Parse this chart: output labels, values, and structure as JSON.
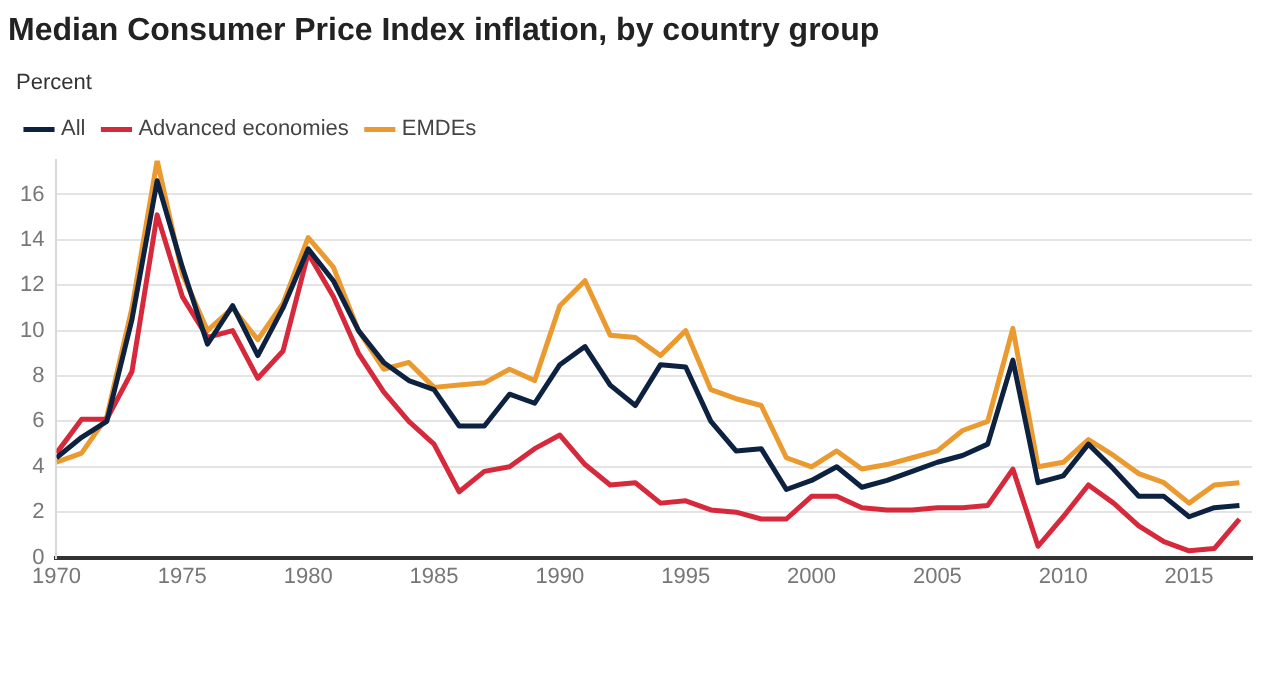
{
  "chart_data": {
    "type": "line",
    "title": "Median Consumer Price Index inflation, by country group",
    "ylabel": "Percent",
    "x": [
      1970,
      1971,
      1972,
      1973,
      1974,
      1975,
      1976,
      1977,
      1978,
      1979,
      1980,
      1981,
      1982,
      1983,
      1984,
      1985,
      1986,
      1987,
      1988,
      1989,
      1990,
      1991,
      1992,
      1993,
      1994,
      1995,
      1996,
      1997,
      1998,
      1999,
      2000,
      2001,
      2002,
      2003,
      2004,
      2005,
      2006,
      2007,
      2008,
      2009,
      2010,
      2011,
      2012,
      2013,
      2014,
      2015,
      2016,
      2017
    ],
    "series": [
      {
        "name": "All",
        "color": "#0d2240",
        "values": [
          4.4,
          5.3,
          6.0,
          10.5,
          16.6,
          12.8,
          9.4,
          11.1,
          8.9,
          11.0,
          13.6,
          12.2,
          10.0,
          8.6,
          7.8,
          7.4,
          5.8,
          5.8,
          7.2,
          6.8,
          8.5,
          9.3,
          7.6,
          6.7,
          8.5,
          8.4,
          6.0,
          4.7,
          4.8,
          3.0,
          3.4,
          4.0,
          3.1,
          3.4,
          3.8,
          4.2,
          4.5,
          5.0,
          8.7,
          3.3,
          3.6,
          5.0,
          3.9,
          2.7,
          2.7,
          1.8,
          2.2,
          2.3
        ]
      },
      {
        "name": "Advanced economies",
        "color": "#d62a3c",
        "values": [
          4.6,
          6.1,
          6.1,
          8.2,
          15.1,
          11.5,
          9.7,
          10.0,
          7.9,
          9.1,
          13.4,
          11.5,
          9.0,
          7.3,
          6.0,
          5.0,
          2.9,
          3.8,
          4.0,
          4.8,
          5.4,
          4.1,
          3.2,
          3.3,
          2.4,
          2.5,
          2.1,
          2.0,
          1.7,
          1.7,
          2.7,
          2.7,
          2.2,
          2.1,
          2.1,
          2.2,
          2.2,
          2.3,
          3.9,
          0.5,
          1.8,
          3.2,
          2.4,
          1.4,
          0.7,
          0.3,
          0.4,
          1.7
        ]
      },
      {
        "name": "EMDEs",
        "color": "#eb9a2f",
        "values": [
          4.2,
          4.6,
          6.2,
          11.0,
          17.5,
          12.5,
          10.0,
          11.0,
          9.6,
          11.2,
          14.1,
          12.8,
          10.0,
          8.3,
          8.6,
          7.5,
          7.6,
          7.7,
          8.3,
          7.8,
          11.1,
          12.2,
          9.8,
          9.7,
          8.9,
          10.0,
          7.4,
          7.0,
          6.7,
          4.4,
          4.0,
          4.7,
          3.9,
          4.1,
          4.4,
          4.7,
          5.6,
          6.0,
          10.1,
          4.0,
          4.2,
          5.2,
          4.5,
          3.7,
          3.3,
          2.4,
          3.2,
          3.3
        ]
      }
    ],
    "xlim": [
      1970,
      2017.5
    ],
    "xticks": [
      1970,
      1975,
      1980,
      1985,
      1990,
      1995,
      2000,
      2005,
      2010,
      2015
    ],
    "ylim": [
      0,
      17.5
    ],
    "yticks": [
      0,
      2,
      4,
      6,
      8,
      10,
      12,
      14,
      16
    ],
    "grid": "y",
    "legend": "top left",
    "marker": "none",
    "line_style": "solid"
  }
}
